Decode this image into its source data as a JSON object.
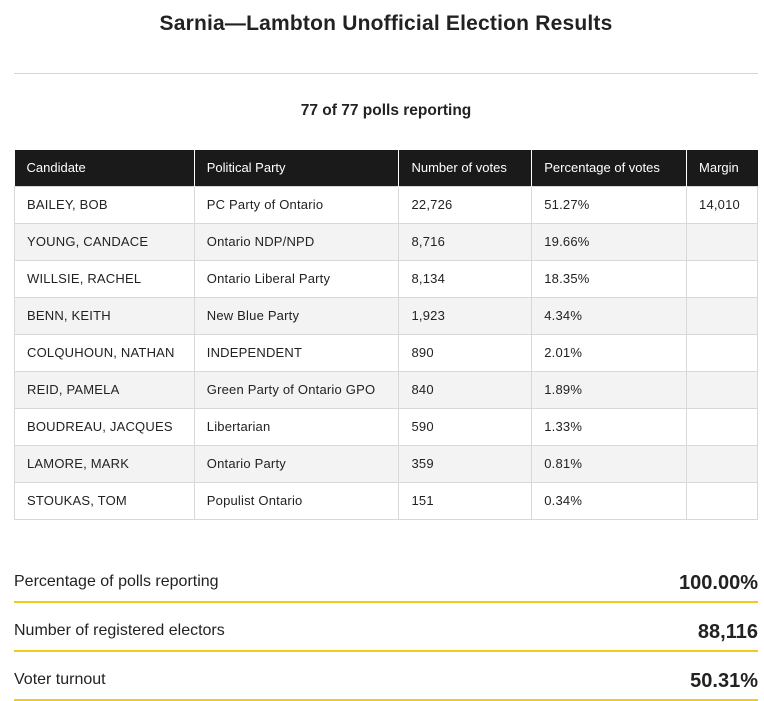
{
  "title": "Sarnia—Lambton Unofficial Election Results",
  "polls_reporting": "77 of 77 polls reporting",
  "table": {
    "headers": [
      "Candidate",
      "Political Party",
      "Number of votes",
      "Percentage of votes",
      "Margin"
    ],
    "rows": [
      {
        "candidate": "BAILEY, BOB",
        "party": "PC Party of Ontario",
        "votes": "22,726",
        "pct": "51.27%",
        "margin": "14,010"
      },
      {
        "candidate": "YOUNG, CANDACE",
        "party": "Ontario NDP/NPD",
        "votes": "8,716",
        "pct": "19.66%",
        "margin": ""
      },
      {
        "candidate": "WILLSIE, RACHEL",
        "party": "Ontario Liberal Party",
        "votes": "8,134",
        "pct": "18.35%",
        "margin": ""
      },
      {
        "candidate": "BENN, KEITH",
        "party": "New Blue Party",
        "votes": "1,923",
        "pct": "4.34%",
        "margin": ""
      },
      {
        "candidate": "COLQUHOUN, NATHAN",
        "party": "INDEPENDENT",
        "votes": "890",
        "pct": "2.01%",
        "margin": ""
      },
      {
        "candidate": "REID, PAMELA",
        "party": "Green Party of Ontario GPO",
        "votes": "840",
        "pct": "1.89%",
        "margin": ""
      },
      {
        "candidate": "BOUDREAU, JACQUES",
        "party": "Libertarian",
        "votes": "590",
        "pct": "1.33%",
        "margin": ""
      },
      {
        "candidate": "LAMORE, MARK",
        "party": "Ontario Party",
        "votes": "359",
        "pct": "0.81%",
        "margin": ""
      },
      {
        "candidate": "STOUKAS, TOM",
        "party": "Populist Ontario",
        "votes": "151",
        "pct": "0.34%",
        "margin": ""
      }
    ]
  },
  "summary": [
    {
      "label": "Percentage of polls reporting",
      "value": "100.00%"
    },
    {
      "label": "Number of registered electors",
      "value": "88,116"
    },
    {
      "label": "Voter turnout",
      "value": "50.31%"
    }
  ],
  "colors": {
    "accent": "#f2cc1b",
    "header_bg": "#1a1a1a"
  }
}
